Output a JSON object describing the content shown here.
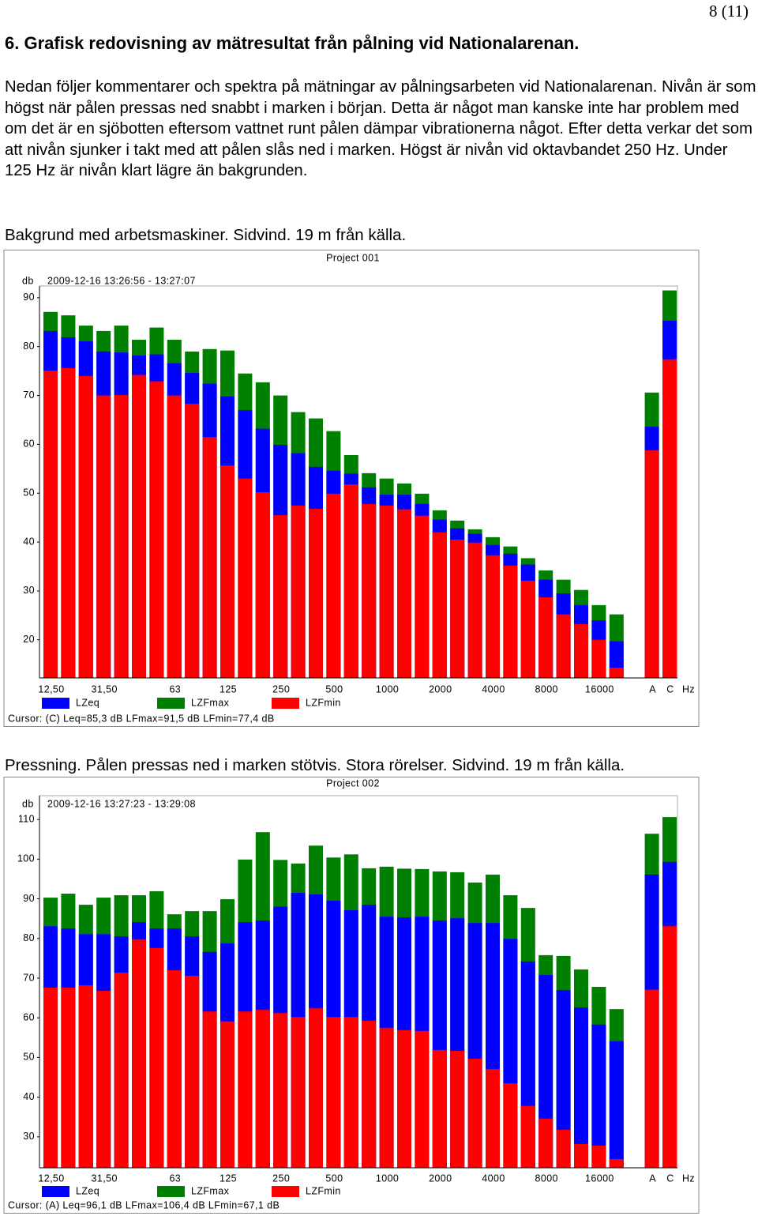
{
  "header": {
    "page_number": "8 (11)",
    "title": "6. Grafisk redovisning av mätresultat från pålning vid Nationalarenan."
  },
  "paragraph": "Nedan följer kommentarer och spektra på mätningar av pålningsarbeten vid Nationalarenan. Nivån är som högst när pålen pressas ned snabbt i marken i början. Detta är något man kanske inte har problem med om det är en sjöbotten eftersom vattnet runt pålen dämpar vibrationerna något. Efter detta verkar det som att nivån sjunker i takt med att pålen slås ned i marken. Högst är nivån vid oktavbandet 250 Hz. Under 125 Hz är nivån klart lägre än bakgrunden.",
  "sections": [
    {
      "caption": "Bakgrund med arbetsmaskiner. Sidvind. 19 m från källa."
    },
    {
      "caption": "Pressning. Pålen pressas ned i marken stötvis. Stora rörelser. Sidvind. 19 m från källa."
    }
  ],
  "chart_data": [
    {
      "type": "bar",
      "title": "Project 001",
      "timestamp": "2009-12-16 13:26:56 - 13:27:07",
      "y_unit": "db",
      "x_unit": "Hz",
      "categories": [
        "12,50",
        null,
        null,
        "31,50",
        null,
        null,
        null,
        "63",
        null,
        null,
        "125",
        null,
        null,
        "250",
        null,
        null,
        "500",
        null,
        null,
        "1000",
        null,
        null,
        "2000",
        null,
        null,
        "4000",
        null,
        null,
        "8000",
        null,
        null,
        "16000",
        null,
        "A",
        "C"
      ],
      "series": [
        {
          "name": "LZeq",
          "color": "#0000ff",
          "values": [
            83.2,
            81.9,
            81.1,
            79.0,
            78.8,
            78.2,
            78.4,
            76.6,
            74.6,
            72.4,
            69.8,
            67.0,
            63.2,
            59.9,
            58.2,
            55.4,
            54.6,
            54.0,
            51.2,
            49.7,
            49.7,
            47.8,
            44.6,
            42.8,
            41.7,
            39.4,
            37.6,
            35.4,
            32.3,
            29.5,
            27.1,
            24.0,
            19.7,
            63.6,
            85.3
          ]
        },
        {
          "name": "LZFmax",
          "color": "#008000",
          "values": [
            87.1,
            86.4,
            84.3,
            83.2,
            84.3,
            81.4,
            83.9,
            81.4,
            79.0,
            79.5,
            79.2,
            74.5,
            72.7,
            70.0,
            66.6,
            65.3,
            62.7,
            57.8,
            54.1,
            53.0,
            52.0,
            49.9,
            46.5,
            44.4,
            42.6,
            41.0,
            39.1,
            36.7,
            34.2,
            32.3,
            30.2,
            27.1,
            25.2,
            70.6,
            91.5
          ]
        },
        {
          "name": "LZFmin",
          "color": "#ff0000",
          "values": [
            75.1,
            75.6,
            74.0,
            70.0,
            70.1,
            74.2,
            72.9,
            70.0,
            68.3,
            61.5,
            55.7,
            53.0,
            50.2,
            45.5,
            47.5,
            46.8,
            49.9,
            51.8,
            47.8,
            47.5,
            46.7,
            45.4,
            42.0,
            40.5,
            39.9,
            37.3,
            35.2,
            32.1,
            28.7,
            25.2,
            23.2,
            20.0,
            14.3,
            58.8,
            77.4
          ]
        }
      ],
      "ylim": [
        12.2,
        92.4
      ],
      "yticks": [
        20,
        30,
        40,
        50,
        60,
        70,
        80,
        90
      ],
      "cursor": "Cursor: (C)  Leq=85,3 dB  LFmax=91,5 dB  LFmin=77,4 dB"
    },
    {
      "type": "bar",
      "title": "Project 002",
      "timestamp": "2009-12-16 13:27:23 - 13:29:08",
      "y_unit": "db",
      "x_unit": "Hz",
      "categories": [
        "12,50",
        null,
        null,
        "31,50",
        null,
        null,
        null,
        "63",
        null,
        null,
        "125",
        null,
        null,
        "250",
        null,
        null,
        "500",
        null,
        null,
        "1000",
        null,
        null,
        "2000",
        null,
        null,
        "4000",
        null,
        null,
        "8000",
        null,
        null,
        "16000",
        null,
        "A",
        "C"
      ],
      "series": [
        {
          "name": "LZeq",
          "color": "#0000ff",
          "values": [
            83.1,
            82.5,
            81.1,
            81.1,
            80.5,
            84.1,
            82.5,
            82.5,
            80.5,
            76.6,
            78.8,
            84.1,
            84.5,
            88.0,
            91.5,
            91.1,
            89.5,
            87.1,
            88.5,
            85.5,
            85.3,
            85.5,
            84.5,
            85.1,
            83.9,
            83.9,
            79.9,
            74.2,
            70.8,
            67.0,
            62.6,
            58.3,
            54.1,
            96.1,
            99.3
          ]
        },
        {
          "name": "LZFmax",
          "color": "#008000",
          "values": [
            90.3,
            91.3,
            88.5,
            90.3,
            90.9,
            90.9,
            91.9,
            86.1,
            86.9,
            86.9,
            89.9,
            99.9,
            106.8,
            99.8,
            98.9,
            103.4,
            100.4,
            101.2,
            97.7,
            98.1,
            97.6,
            97.5,
            96.9,
            96.7,
            94.1,
            96.1,
            90.9,
            87.7,
            75.8,
            75.6,
            72.2,
            67.8,
            62.2,
            106.4,
            110.6
          ]
        },
        {
          "name": "LZFmin",
          "color": "#ff0000",
          "values": [
            67.6,
            67.6,
            68.2,
            66.8,
            71.4,
            79.8,
            77.6,
            72.0,
            70.6,
            61.6,
            59.1,
            61.6,
            62.0,
            61.2,
            60.2,
            62.4,
            60.2,
            60.2,
            59.3,
            57.5,
            56.9,
            56.7,
            51.9,
            51.7,
            49.7,
            47.1,
            43.5,
            37.8,
            34.6,
            31.8,
            28.2,
            27.8,
            24.4,
            67.1,
            83.1
          ]
        }
      ],
      "ylim": [
        22.2,
        116
      ],
      "yticks": [
        30,
        40,
        50,
        60,
        70,
        80,
        90,
        100,
        110
      ],
      "cursor": "Cursor: (A)  Leq=96,1 dB  LFmax=106,4 dB  LFmin=67,1 dB"
    }
  ]
}
